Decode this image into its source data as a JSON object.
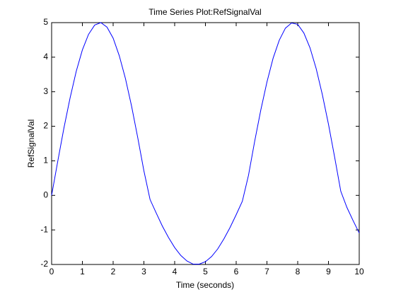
{
  "chart_data": {
    "type": "line",
    "title": "Time Series Plot:RefSignalVal",
    "xlabel": "Time (seconds)",
    "ylabel": "RefSignalVal",
    "x": [
      0,
      0.2,
      0.4,
      0.6,
      0.8,
      1,
      1.2,
      1.4,
      1.6,
      1.8,
      2,
      2.2,
      2.4,
      2.6,
      2.8,
      3,
      3.2,
      3.4,
      3.6,
      3.8,
      4,
      4.2,
      4.4,
      4.6,
      4.8,
      5,
      5.2,
      5.4,
      5.6,
      5.8,
      6,
      6.2,
      6.4,
      6.6,
      6.8,
      7,
      7.2,
      7.4,
      7.6,
      7.8,
      8,
      8.2,
      8.4,
      8.6,
      8.8,
      9,
      9.2,
      9.4,
      9.6,
      9.8,
      10
    ],
    "series": [
      {
        "name": "RefSignalVal",
        "color": "#0000ff",
        "values": [
          0,
          0.99,
          1.95,
          2.82,
          3.59,
          4.21,
          4.66,
          4.93,
          5,
          4.87,
          4.55,
          4.04,
          3.38,
          2.58,
          1.67,
          0.71,
          -0.12,
          -0.51,
          -0.89,
          -1.22,
          -1.51,
          -1.74,
          -1.9,
          -1.99,
          -1.99,
          -1.92,
          -1.77,
          -1.55,
          -1.26,
          -0.93,
          -0.56,
          -0.17,
          0.58,
          1.56,
          2.47,
          3.28,
          3.97,
          4.49,
          4.84,
          4.99,
          4.95,
          4.7,
          4.27,
          3.67,
          2.92,
          2.06,
          1.11,
          0.12,
          -0.35,
          -0.73,
          -1.09
        ]
      }
    ],
    "xlim": [
      0,
      10
    ],
    "xticks": [
      0,
      1,
      2,
      3,
      4,
      5,
      6,
      7,
      8,
      9,
      10
    ],
    "ylim": [
      -2,
      5
    ],
    "yticks": [
      -2,
      -1,
      0,
      1,
      2,
      3,
      4,
      5
    ],
    "grid": false
  }
}
